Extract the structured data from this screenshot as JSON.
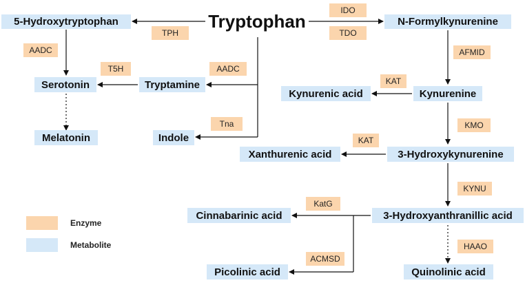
{
  "title": "Tryptophan",
  "metabolites": {
    "hydroxytryptophan": "5-Hydroxytryptophan",
    "n_formylkynurenine": "N-Formylkynurenine",
    "serotonin": "Serotonin",
    "tryptamine": "Tryptamine",
    "kynurenic_acid": "Kynurenic acid",
    "kynurenine": "Kynurenine",
    "melatonin": "Melatonin",
    "indole": "Indole",
    "xanthurenic_acid": "Xanthurenic acid",
    "hydroxykynurenine": "3-Hydroxykynurenine",
    "cinnabarinic_acid": "Cinnabarinic acid",
    "hydroxyanthranillic_acid": "3-Hydroxyanthranillic acid",
    "picolinic_acid": "Picolinic acid",
    "quinolinic_acid": "Quinolinic acid"
  },
  "enzymes": {
    "ido": "IDO",
    "tdo": "TDO",
    "tph": "TPH",
    "aadc_1": "AADC",
    "afmid": "AFMID",
    "t5h": "T5H",
    "aadc_2": "AADC",
    "kat_1": "KAT",
    "tna": "Tna",
    "kmo": "KMO",
    "kat_2": "KAT",
    "kynu": "KYNU",
    "katg": "KatG",
    "haao": "HAAO",
    "acmsd": "ACMSD"
  },
  "legend": {
    "enzyme_label": "Enzyme",
    "metabolite_label": "Metabolite",
    "enzyme_color": "#fbd5ad",
    "metabolite_color": "#d5e8f8"
  }
}
